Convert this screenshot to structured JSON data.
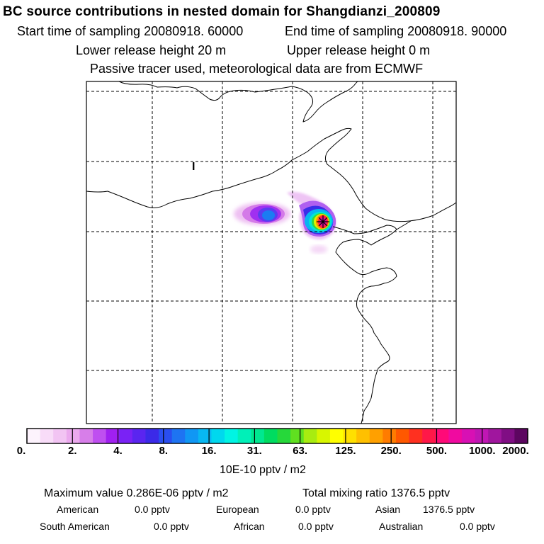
{
  "header": {
    "title": "BC  source contributions in nested domain for Shangdianzi_200809",
    "start_time": "Start time of sampling 20080918. 60000",
    "end_time": "End time of sampling 20080918. 90000",
    "lower_release": "Lower release height   20 m",
    "upper_release": "Upper release height    0 m",
    "tracer": "Passive tracer used, meteorological data are from ECMWF"
  },
  "map": {
    "receptor_marker": "receptor-star",
    "small_mark": "I"
  },
  "colorbar": {
    "ticks": [
      "0.",
      "2.",
      "4.",
      "8.",
      "16.",
      "31.",
      "63.",
      "125.",
      "250.",
      "500.",
      "1000.",
      "2000."
    ],
    "units": "10E-10 pptv / m2",
    "colors": [
      "#fdf3fd",
      "#f8dcf8",
      "#f2c4f3",
      "#eba9ee",
      "#d77ee9",
      "#bf4ff0",
      "#a020f0",
      "#7a22f5",
      "#5a25f0",
      "#3b2ae8",
      "#2a4ef0",
      "#1e74f2",
      "#1097f4",
      "#08b8f2",
      "#00d8ee",
      "#00f4e4",
      "#00f0b8",
      "#00e890",
      "#00dc60",
      "#26d83a",
      "#60e020",
      "#a8ec10",
      "#d8f600",
      "#ffff00",
      "#ffe000",
      "#ffc000",
      "#ffa000",
      "#ff7c00",
      "#ff5800",
      "#ff3020",
      "#ff1848",
      "#ff0a78",
      "#f00aa0",
      "#d810b4",
      "#c016b4",
      "#a0169e",
      "#800e84",
      "#5c0660"
    ]
  },
  "stats": {
    "max_value": "Maximum value  0.286E-06 pptv / m2",
    "total_mixing": "Total mixing ratio     1376.5 pptv",
    "american_label": "American",
    "american_value": "0.0 pptv",
    "european_label": "European",
    "european_value": "0.0 pptv",
    "asian_label": "Asian",
    "asian_value": "1376.5 pptv",
    "south_american_label": "South American",
    "south_american_value": "0.0 pptv",
    "african_label": "African",
    "african_value": "0.0 pptv",
    "australian_label": "Australian",
    "australian_value": "0.0 pptv"
  }
}
